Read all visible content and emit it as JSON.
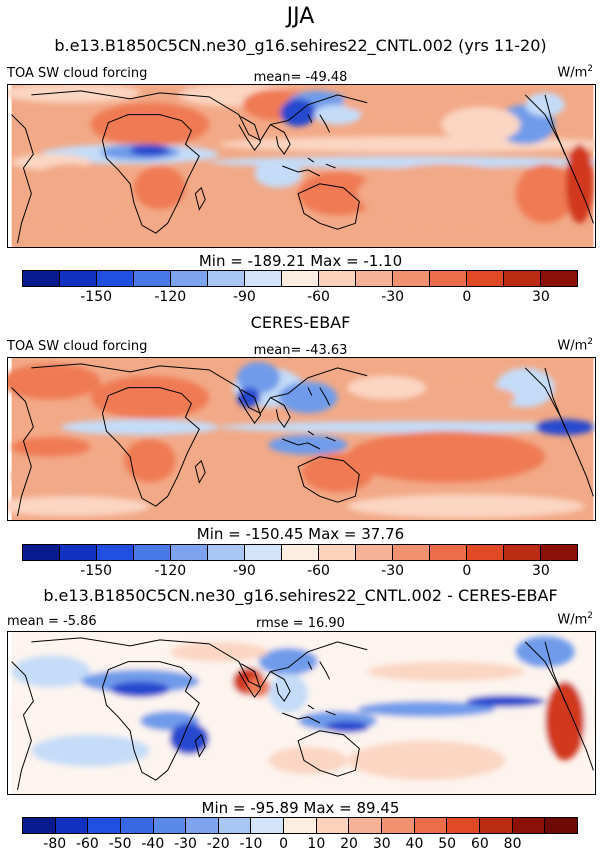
{
  "title": "JJA",
  "subtitle": "b.e13.B1850C5CN.ne30_g16.sehires22_CNTL.002 (yrs 11-20)",
  "colors": {
    "bg": "#f2a987",
    "warm": "#ef7a52",
    "pale": "#fbd6c3",
    "lightblue": "#c4dcf8",
    "blue": "#6f9bea",
    "deepblue": "#2748cf",
    "navy": "#10239a",
    "red": "#d1391f",
    "white": "#fdf4ef"
  },
  "panels": [
    {
      "id": "model",
      "left_label": "TOA SW cloud forcing",
      "center_label": "mean= -49.48",
      "units": "W/m",
      "units_exp": "2",
      "minmax": "Min = -189.21 Max =  -1.10",
      "colorbar": {
        "colors": [
          "#0a1b8f",
          "#1232c2",
          "#2150e0",
          "#4a7ae8",
          "#7ea4ef",
          "#a9c6f5",
          "#d3e4fb",
          "#fdeee2",
          "#fbd3bd",
          "#f6b296",
          "#f0916f",
          "#eb6e48",
          "#e04a24",
          "#bd2d14",
          "#8b1008"
        ],
        "labels": [
          "-150",
          "-120",
          "-90",
          "-60",
          "-30",
          "0",
          "30"
        ],
        "label_positions": [
          2,
          4,
          6,
          8,
          10,
          12,
          14
        ]
      }
    },
    {
      "id": "obs",
      "title": "CERES-EBAF",
      "left_label": "TOA SW cloud forcing",
      "center_label": "mean= -43.63",
      "units": "W/m",
      "units_exp": "2",
      "minmax": "Min = -150.45 Max =  37.76",
      "colorbar": {
        "colors": [
          "#0a1b8f",
          "#1232c2",
          "#2150e0",
          "#4a7ae8",
          "#7ea4ef",
          "#a9c6f5",
          "#d3e4fb",
          "#fdeee2",
          "#fbd3bd",
          "#f6b296",
          "#f0916f",
          "#eb6e48",
          "#e04a24",
          "#bd2d14",
          "#8b1008"
        ],
        "labels": [
          "-150",
          "-120",
          "-90",
          "-60",
          "-30",
          "0",
          "30"
        ],
        "label_positions": [
          2,
          4,
          6,
          8,
          10,
          12,
          14
        ]
      }
    },
    {
      "id": "diff",
      "title": "b.e13.B1850C5CN.ne30_g16.sehires22_CNTL.002 - CERES-EBAF",
      "left_label": "mean =  -5.86",
      "center_label": "rmse =  16.90",
      "units": "W/m",
      "units_exp": "2",
      "minmax": "Min = -95.89 Max =  89.45",
      "colorbar": {
        "colors": [
          "#0a1b8f",
          "#1232c2",
          "#2150e0",
          "#3868e4",
          "#5a89ea",
          "#7ea4ef",
          "#a9c6f5",
          "#d3e4fb",
          "#fdeee2",
          "#fbd3bd",
          "#f6b296",
          "#f0916f",
          "#eb6e48",
          "#e04a24",
          "#bd2d14",
          "#8b1008",
          "#6e0a05"
        ],
        "labels": [
          "-80",
          "-60",
          "-50",
          "-40",
          "-30",
          "-20",
          "-10",
          "0",
          "10",
          "20",
          "30",
          "40",
          "50",
          "60",
          "80"
        ],
        "label_positions": [
          1,
          2,
          3,
          4,
          5,
          6,
          7,
          8,
          9,
          10,
          11,
          12,
          13,
          14,
          15
        ]
      }
    }
  ]
}
